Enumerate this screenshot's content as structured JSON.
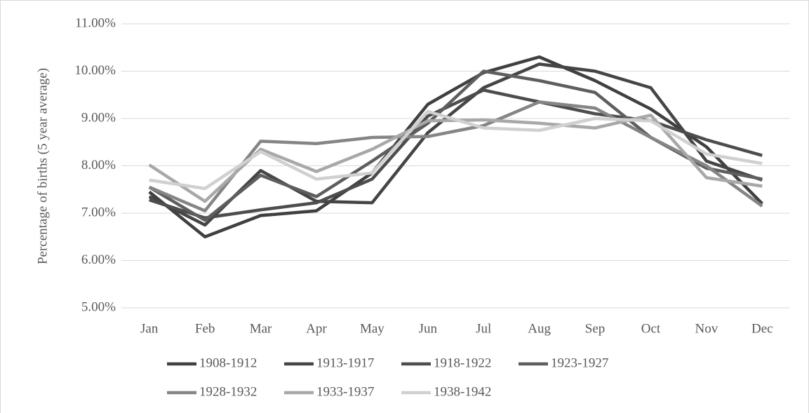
{
  "chart_data": {
    "type": "line",
    "y_label": "Percentage of births (5 year average)",
    "categories": [
      "Jan",
      "Feb",
      "Mar",
      "Apr",
      "May",
      "Jun",
      "Jul",
      "Aug",
      "Sep",
      "Oct",
      "Nov",
      "Dec"
    ],
    "series": [
      {
        "name": "1908-1912",
        "color": "#404040",
        "values": [
          7.45,
          6.5,
          6.95,
          7.05,
          7.85,
          9.3,
          9.97,
          10.3,
          9.8,
          9.2,
          8.4,
          7.2
        ]
      },
      {
        "name": "1913-1917",
        "color": "#454545",
        "values": [
          7.35,
          6.75,
          7.9,
          7.25,
          7.22,
          8.7,
          9.65,
          10.15,
          10.0,
          9.65,
          8.1,
          7.7
        ]
      },
      {
        "name": "1918-1922",
        "color": "#4d4d4d",
        "values": [
          7.28,
          6.9,
          7.07,
          7.22,
          7.72,
          9.05,
          9.6,
          9.35,
          9.1,
          8.95,
          8.55,
          8.22
        ]
      },
      {
        "name": "1923-1927",
        "color": "#5e5e5e",
        "values": [
          7.55,
          6.85,
          7.8,
          7.35,
          8.1,
          8.9,
          10.0,
          9.8,
          9.55,
          8.6,
          7.95,
          7.72
        ]
      },
      {
        "name": "1928-1932",
        "color": "#858585",
        "values": [
          7.55,
          7.05,
          8.52,
          8.47,
          8.6,
          8.62,
          8.85,
          9.35,
          9.22,
          8.6,
          8.0,
          7.15
        ]
      },
      {
        "name": "1933-1937",
        "color": "#a8a8a8",
        "values": [
          8.02,
          7.25,
          8.35,
          7.88,
          8.35,
          8.95,
          8.97,
          8.9,
          8.8,
          9.07,
          7.75,
          7.57
        ]
      },
      {
        "name": "1938-1942",
        "color": "#d0d0d0",
        "values": [
          7.7,
          7.52,
          8.3,
          7.72,
          7.85,
          9.15,
          8.8,
          8.75,
          9.0,
          8.95,
          8.25,
          8.05
        ]
      }
    ],
    "ylim": [
      5,
      11
    ],
    "yticks": [
      {
        "value": 5,
        "label": "5.00%"
      },
      {
        "value": 6,
        "label": "6.00%"
      },
      {
        "value": 7,
        "label": "7.00%"
      },
      {
        "value": 8,
        "label": "8.00%"
      },
      {
        "value": 9,
        "label": "9.00%"
      },
      {
        "value": 10,
        "label": "10.00%"
      },
      {
        "value": 11,
        "label": "11.00%"
      }
    ],
    "grid": true
  }
}
